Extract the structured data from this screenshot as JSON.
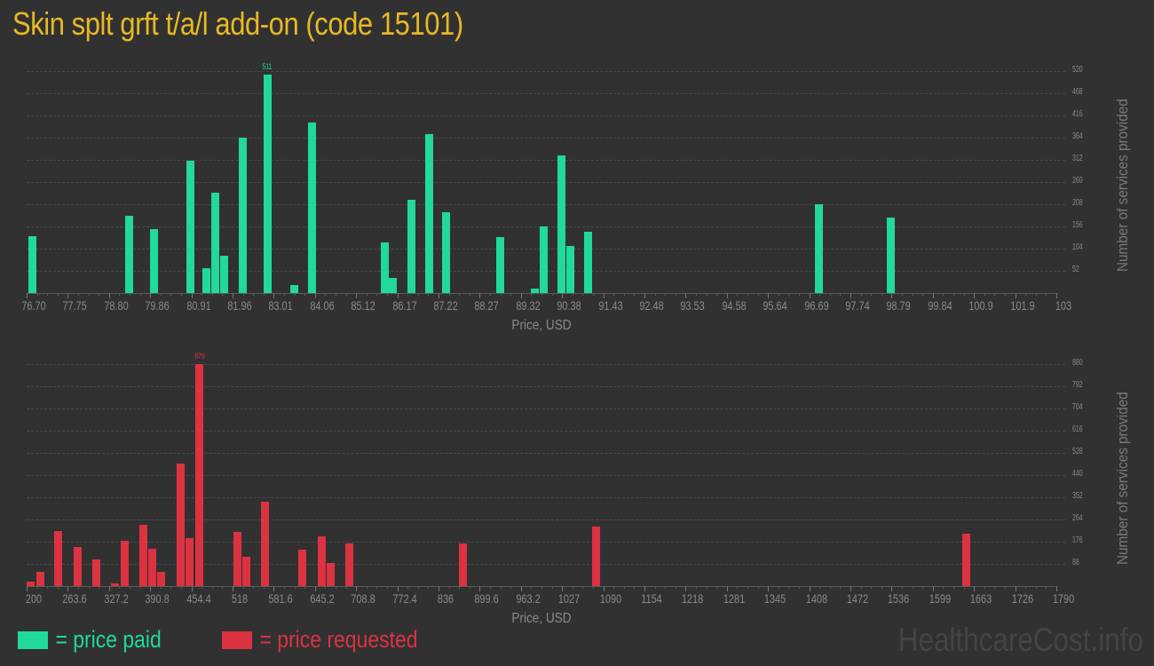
{
  "title": "Skin splt grft t/a/l add-on (code 15101)",
  "legend": {
    "paid_label": "= price paid",
    "requested_label": "= price requested",
    "paid_color": "#20d99a",
    "requested_color": "#dc3241"
  },
  "watermark": "HealthcareCost.info",
  "chart_data": [
    {
      "type": "bar",
      "title": "price paid",
      "xlabel": "Price, USD",
      "ylabel": "Number of services provided",
      "color": "#20d99a",
      "x_ticks": [
        "76.70",
        "77.75",
        "78.80",
        "79.86",
        "80.91",
        "81.96",
        "83.01",
        "84.06",
        "85.12",
        "86.17",
        "87.22",
        "88.27",
        "89.32",
        "90.38",
        "91.43",
        "92.48",
        "93.53",
        "94.58",
        "95.64",
        "96.69",
        "97.74",
        "98.79",
        "99.84",
        "100.9",
        "101.9",
        "103"
      ],
      "y_ticks": [
        52,
        104,
        156,
        208,
        260,
        312,
        364,
        416,
        468,
        520
      ],
      "ylim": [
        0,
        520
      ],
      "xlim": [
        76.7,
        103
      ],
      "grid": true,
      "peak_label": "511",
      "x": [
        76.75,
        79.22,
        79.86,
        80.77,
        81.19,
        81.42,
        81.65,
        82.11,
        82.75,
        83.44,
        83.89,
        85.74,
        85.96,
        86.42,
        86.88,
        87.31,
        88.69,
        89.57,
        89.8,
        90.25,
        90.49,
        90.94,
        96.84,
        98.66
      ],
      "values": [
        133,
        181,
        150,
        310,
        58,
        235,
        87,
        364,
        511,
        19,
        399,
        119,
        35,
        218,
        372,
        189,
        131,
        10,
        156,
        322,
        110,
        143,
        208,
        177
      ]
    },
    {
      "type": "bar",
      "title": "price requested",
      "xlabel": "Price, USD",
      "ylabel": "Number of services provided",
      "color": "#dc3241",
      "x_ticks": [
        "200",
        "263.6",
        "327.2",
        "390.8",
        "454.4",
        "518",
        "581.6",
        "645.2",
        "708.8",
        "772.4",
        "836",
        "899.6",
        "963.2",
        "1027",
        "1090",
        "1154",
        "1218",
        "1281",
        "1345",
        "1408",
        "1472",
        "1536",
        "1599",
        "1663",
        "1726",
        "1790"
      ],
      "y_ticks": [
        88,
        176,
        264,
        352,
        440,
        528,
        616,
        704,
        792,
        880
      ],
      "ylim": [
        0,
        880
      ],
      "xlim": [
        200,
        1790
      ],
      "grid": true,
      "peak_label": "879",
      "x": [
        200,
        215,
        243,
        272,
        301,
        330,
        345,
        374,
        388,
        402,
        432,
        446,
        461,
        519,
        533,
        562,
        620,
        649,
        663,
        692,
        868,
        1073,
        1645
      ],
      "values": [
        18,
        56,
        218,
        155,
        106,
        11,
        180,
        243,
        148,
        56,
        486,
        190,
        879,
        215,
        116,
        334,
        144,
        197,
        92,
        169,
        169,
        236,
        208
      ]
    }
  ]
}
